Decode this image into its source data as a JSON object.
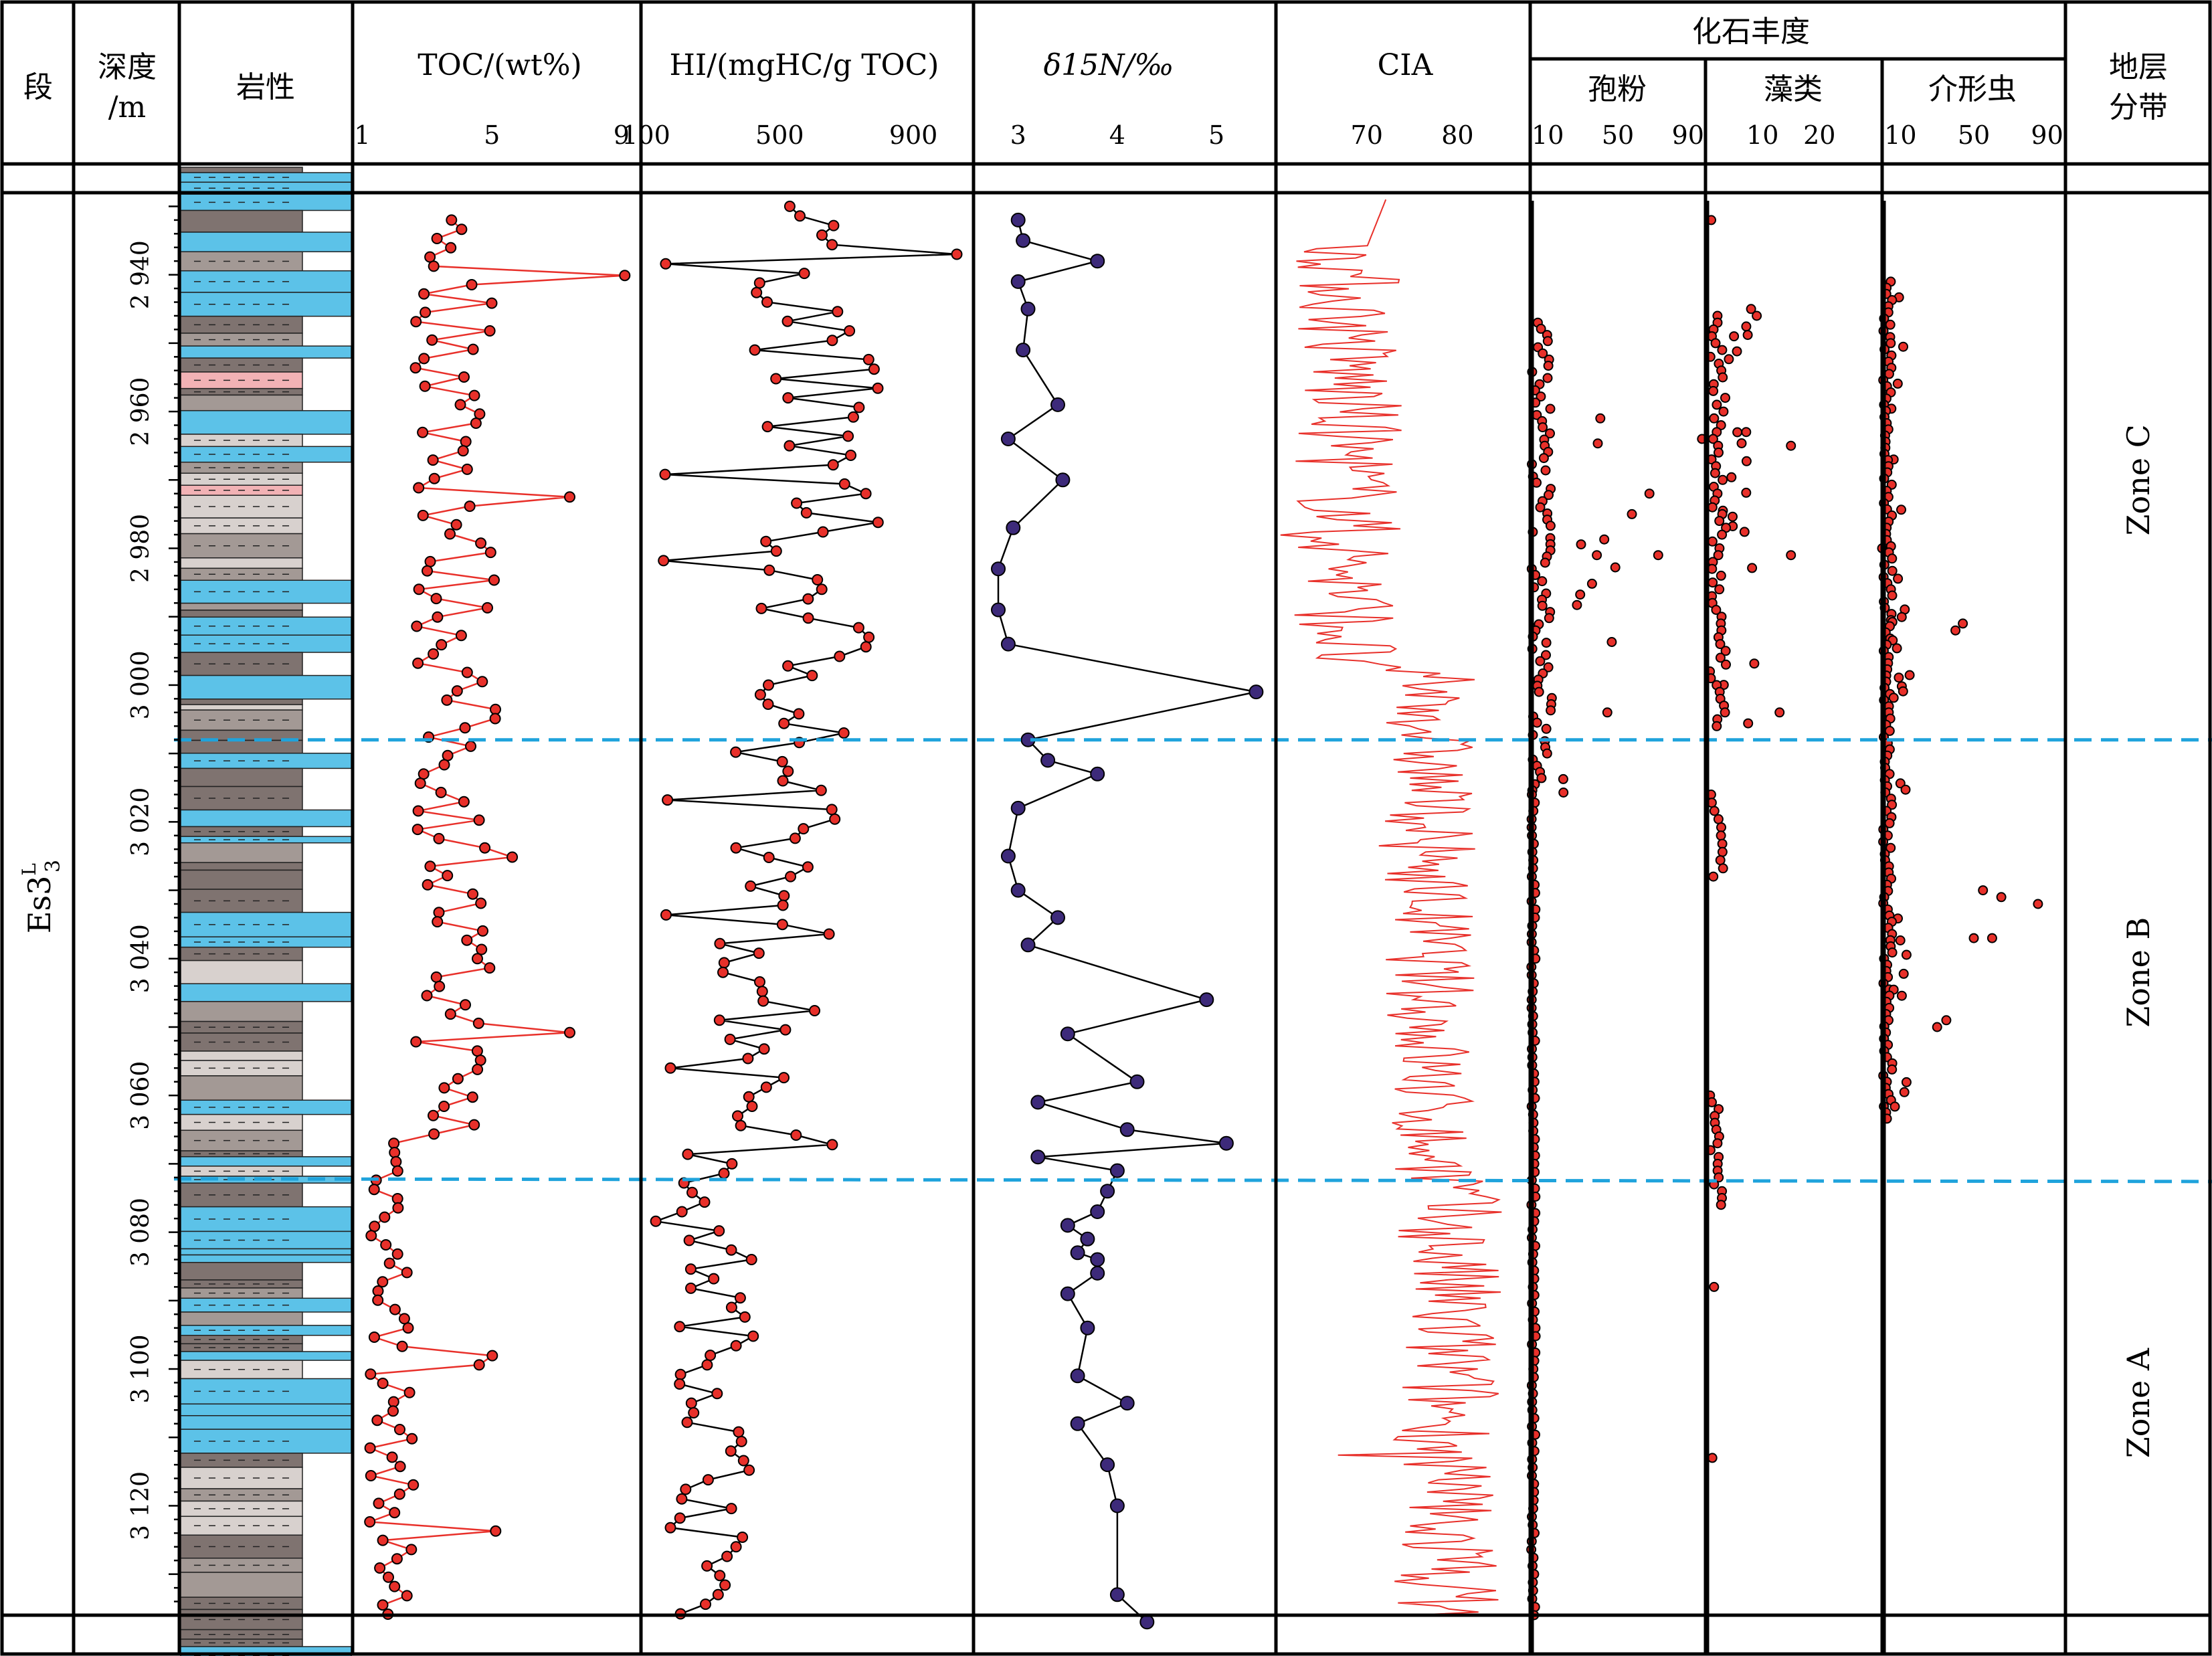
{
  "columns": {
    "segment": "段",
    "depth_line1": "深度",
    "depth_line2": "/m",
    "lithology": "岩性",
    "toc": "TOC/(wt%)",
    "hi": "HI/(mgHC/g TOC)",
    "d15n": "δ15N/‰",
    "cia": "CIA",
    "fossil_group": "化石丰度",
    "spore": "孢粉",
    "algae": "藻类",
    "ostracod": "介形虫",
    "zone_line1": "地层",
    "zone_line2": "分带"
  },
  "segment_label": "Es3",
  "segment_sub": "3",
  "segment_sup": "L",
  "zones": [
    "Zone C",
    "Zone B",
    "Zone A"
  ],
  "colors": {
    "red": "#e8302a",
    "purple": "#3d2a7a",
    "blue_dash": "#1fa3dc",
    "blue_litho": "#5cc2e8",
    "dark_grey": "#7f7370",
    "mid_grey": "#a39995",
    "light_grey": "#d8d1ce",
    "pink": "#f2b2b5"
  },
  "chart_data": {
    "type": "scatter",
    "depth_axis": {
      "range": [
        2928,
        3136
      ],
      "ticks": [
        2940,
        2960,
        2980,
        3000,
        3020,
        3040,
        3060,
        3080,
        3100,
        3120
      ],
      "tick_labels": [
        "2 940",
        "2 960",
        "2 980",
        "3 000",
        "3 020",
        "3 040",
        "3 060",
        "3 080",
        "3 100",
        "3 120"
      ]
    },
    "zone_boundaries": [
      3008,
      3072
    ],
    "tracks": {
      "toc": {
        "ticks": [
          1,
          5,
          9
        ],
        "range": [
          0.7,
          9.6
        ]
      },
      "hi": {
        "ticks": [
          100,
          500,
          900
        ],
        "range": [
          85,
          1080
        ]
      },
      "d15n": {
        "ticks": [
          3,
          4,
          5
        ],
        "range": [
          2.55,
          5.6
        ]
      },
      "cia": {
        "ticks": [
          70,
          80
        ],
        "range": [
          60,
          88
        ]
      },
      "spore": {
        "ticks": [
          10,
          50,
          90
        ],
        "range": [
          0,
          100
        ]
      },
      "algae": {
        "ticks": [
          10,
          20
        ],
        "range": [
          0,
          31
        ]
      },
      "ostracod": {
        "ticks": [
          10,
          50,
          90
        ],
        "range": [
          0,
          100
        ]
      }
    },
    "d15n_points": [
      [
        2932,
        3.0
      ],
      [
        2935,
        3.05
      ],
      [
        2938,
        3.8
      ],
      [
        2941,
        3.0
      ],
      [
        2945,
        3.1
      ],
      [
        2951,
        3.05
      ],
      [
        2959,
        3.4
      ],
      [
        2964,
        2.9
      ],
      [
        2970,
        3.45
      ],
      [
        2977,
        2.95
      ],
      [
        2983,
        2.8
      ],
      [
        2989,
        2.8
      ],
      [
        2994,
        2.9
      ],
      [
        3001,
        5.4
      ],
      [
        3008,
        3.1
      ],
      [
        3011,
        3.3
      ],
      [
        3013,
        3.8
      ],
      [
        3018,
        3.0
      ],
      [
        3025,
        2.9
      ],
      [
        3030,
        3.0
      ],
      [
        3034,
        3.4
      ],
      [
        3038,
        3.1
      ],
      [
        3046,
        4.9
      ],
      [
        3051,
        3.5
      ],
      [
        3058,
        4.2
      ],
      [
        3061,
        3.2
      ],
      [
        3065,
        4.1
      ],
      [
        3067,
        5.1
      ],
      [
        3069,
        3.2
      ],
      [
        3071,
        4.0
      ],
      [
        3074,
        3.9
      ],
      [
        3077,
        3.8
      ],
      [
        3079,
        3.5
      ],
      [
        3081,
        3.7
      ],
      [
        3083,
        3.6
      ],
      [
        3084,
        3.8
      ],
      [
        3086,
        3.8
      ],
      [
        3089,
        3.5
      ],
      [
        3094,
        3.7
      ],
      [
        3101,
        3.6
      ],
      [
        3105,
        4.1
      ],
      [
        3108,
        3.6
      ],
      [
        3114,
        3.9
      ],
      [
        3120,
        4.0
      ],
      [
        3133,
        4.0
      ],
      [
        3137,
        4.3
      ]
    ]
  }
}
